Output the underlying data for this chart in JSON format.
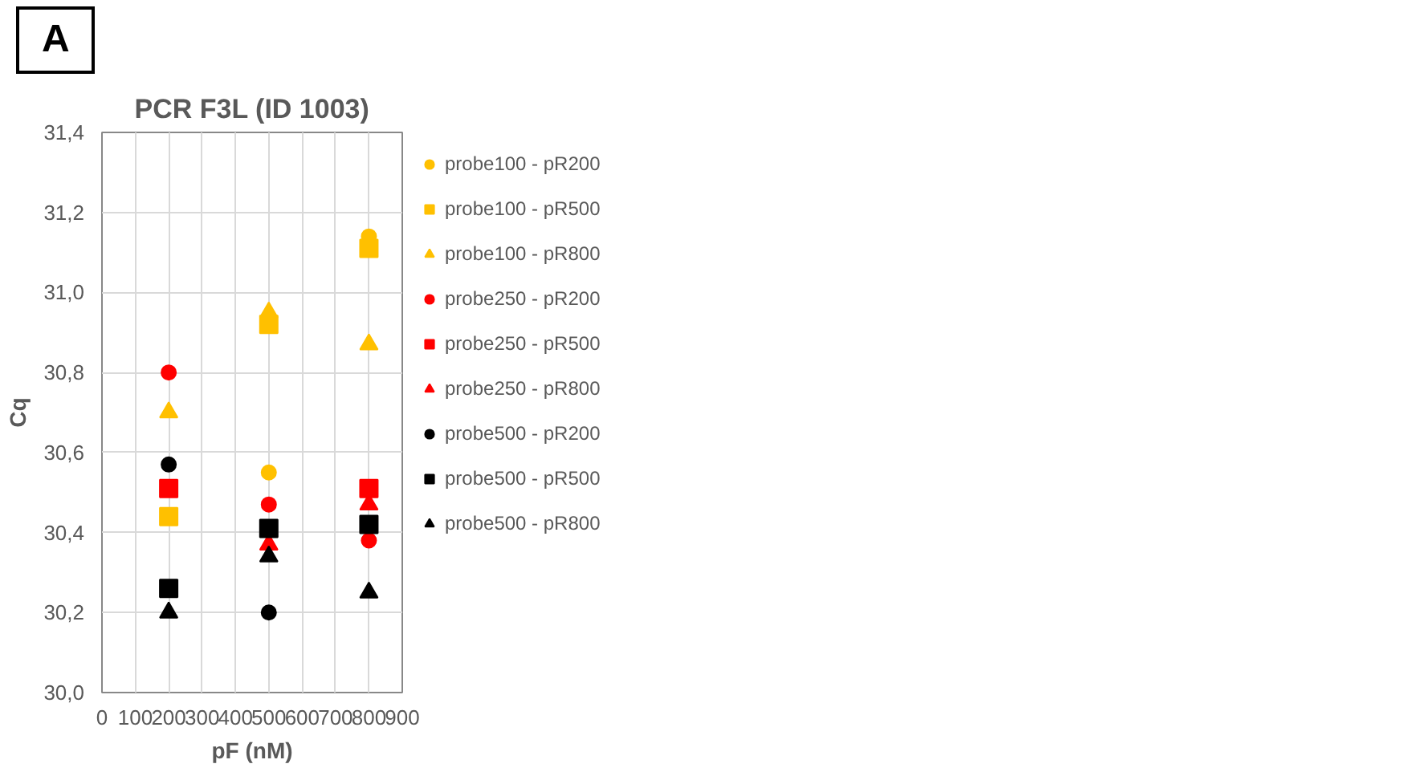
{
  "chart_data": {
    "type": "scatter",
    "title": "PCR F3L (ID 1003)",
    "xlabel": "pF (nM)",
    "ylabel": "Cq",
    "annotations": [
      "A"
    ],
    "xlim": [
      0,
      900
    ],
    "xticks": [
      0,
      100,
      200,
      300,
      400,
      500,
      600,
      700,
      800,
      900
    ],
    "ylim": [
      30.0,
      31.4
    ],
    "yticks": [
      {
        "value": 30.0,
        "label": "30,0"
      },
      {
        "value": 30.2,
        "label": "30,2"
      },
      {
        "value": 30.4,
        "label": "30,4"
      },
      {
        "value": 30.6,
        "label": "30,6"
      },
      {
        "value": 30.8,
        "label": "30,8"
      },
      {
        "value": 31.0,
        "label": "31,0"
      },
      {
        "value": 31.2,
        "label": "31,2"
      },
      {
        "value": 31.4,
        "label": "31,4"
      }
    ],
    "grid": true,
    "legend": "right",
    "x": [
      200,
      500,
      800
    ],
    "series": [
      {
        "name": "probe100 - pR200",
        "color": "#ffc000",
        "marker": "circle",
        "values": [
          null,
          30.55,
          31.14
        ]
      },
      {
        "name": "probe100 - pR500",
        "color": "#ffc000",
        "marker": "square",
        "values": [
          30.44,
          30.92,
          31.11
        ]
      },
      {
        "name": "probe100 - pR800",
        "color": "#ffc000",
        "marker": "triangle",
        "values": [
          30.7,
          30.95,
          30.87
        ]
      },
      {
        "name": "probe250 - pR200",
        "color": "#ff0000",
        "marker": "circle",
        "values": [
          30.8,
          30.47,
          30.38
        ]
      },
      {
        "name": "probe250 - pR500",
        "color": "#ff0000",
        "marker": "square",
        "values": [
          30.51,
          null,
          30.51
        ]
      },
      {
        "name": "probe250 - pR800",
        "color": "#ff0000",
        "marker": "triangle",
        "values": [
          null,
          30.37,
          30.47
        ]
      },
      {
        "name": "probe500 - pR200",
        "color": "#000000",
        "marker": "circle",
        "values": [
          30.57,
          30.2,
          null
        ]
      },
      {
        "name": "probe500 - pR500",
        "color": "#000000",
        "marker": "square",
        "values": [
          30.26,
          30.41,
          30.42
        ]
      },
      {
        "name": "probe500 - pR800",
        "color": "#000000",
        "marker": "triangle",
        "values": [
          30.2,
          30.34,
          30.25
        ]
      }
    ]
  }
}
